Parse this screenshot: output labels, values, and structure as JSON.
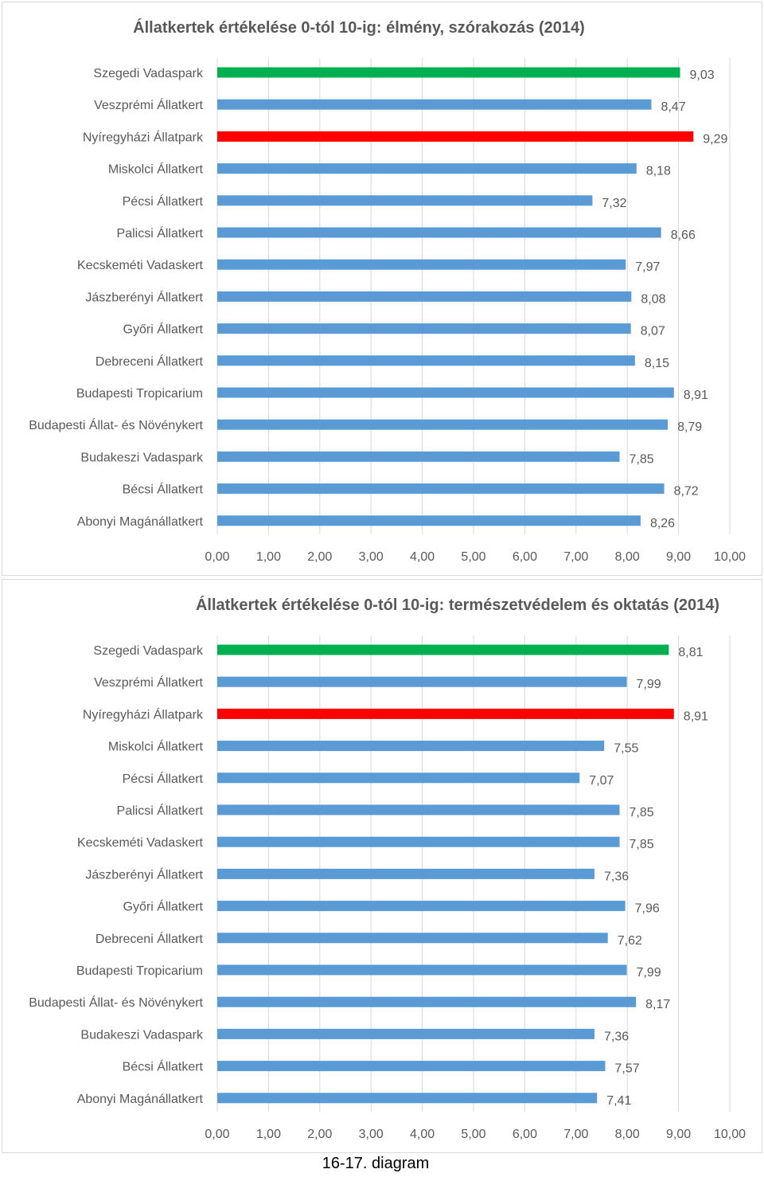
{
  "caption": "16-17. diagram",
  "chart_data": [
    {
      "type": "bar",
      "orientation": "horizontal",
      "title": "Állatkertek értékelése 0-tól 10-ig: élmény, szórakozás (2014)",
      "categories": [
        "Szegedi Vadaspark",
        "Veszprémi Állatkert",
        "Nyíregyházi Állatpark",
        "Miskolci Állatkert",
        "Pécsi Állatkert",
        "Palicsi Állatkert",
        "Kecskeméti Vadaskert",
        "Jászberényi Állatkert",
        "Győri Állatkert",
        "Debreceni Állatkert",
        "Budapesti Tropicarium",
        "Budapesti Állat- és Növénykert",
        "Budakeszi Vadaspark",
        "Bécsi Állatkert",
        "Abonyi Magánállatkert"
      ],
      "values": [
        9.03,
        8.47,
        9.29,
        8.18,
        7.32,
        8.66,
        7.97,
        8.08,
        8.07,
        8.15,
        8.91,
        8.79,
        7.85,
        8.72,
        8.26
      ],
      "value_labels": [
        "9,03",
        "8,47",
        "9,29",
        "8,18",
        "7,32",
        "8,66",
        "7,97",
        "8,08",
        "8,07",
        "8,15",
        "8,91",
        "8,79",
        "7,85",
        "8,72",
        "8,26"
      ],
      "colors": [
        "#00b050",
        "#5b9bd5",
        "#ff0000",
        "#5b9bd5",
        "#5b9bd5",
        "#5b9bd5",
        "#5b9bd5",
        "#5b9bd5",
        "#5b9bd5",
        "#5b9bd5",
        "#5b9bd5",
        "#5b9bd5",
        "#5b9bd5",
        "#5b9bd5",
        "#5b9bd5"
      ],
      "xlim": [
        0,
        10
      ],
      "xticks": [
        0,
        1,
        2,
        3,
        4,
        5,
        6,
        7,
        8,
        9,
        10
      ],
      "xtick_labels": [
        "0,00",
        "1,00",
        "2,00",
        "3,00",
        "4,00",
        "5,00",
        "6,00",
        "7,00",
        "8,00",
        "9,00",
        "10,00"
      ],
      "grid": true,
      "legend": "none"
    },
    {
      "type": "bar",
      "orientation": "horizontal",
      "title": "Állatkertek értékelése 0-tól 10-ig: természetvédelem és oktatás (2014)",
      "categories": [
        "Szegedi Vadaspark",
        "Veszprémi Állatkert",
        "Nyíregyházi Állatpark",
        "Miskolci Állatkert",
        "Pécsi Állatkert",
        "Palicsi Állatkert",
        "Kecskeméti Vadaskert",
        "Jászberényi Állatkert",
        "Győri Állatkert",
        "Debreceni Állatkert",
        "Budapesti Tropicarium",
        "Budapesti Állat- és Növénykert",
        "Budakeszi Vadaspark",
        "Bécsi Állatkert",
        "Abonyi Magánállatkert"
      ],
      "values": [
        8.81,
        7.99,
        8.91,
        7.55,
        7.07,
        7.85,
        7.85,
        7.36,
        7.96,
        7.62,
        7.99,
        8.17,
        7.36,
        7.57,
        7.41
      ],
      "value_labels": [
        "8,81",
        "7,99",
        "8,91",
        "7,55",
        "7,07",
        "7,85",
        "7,85",
        "7,36",
        "7,96",
        "7,62",
        "7,99",
        "8,17",
        "7,36",
        "7,57",
        "7,41"
      ],
      "colors": [
        "#00b050",
        "#5b9bd5",
        "#ff0000",
        "#5b9bd5",
        "#5b9bd5",
        "#5b9bd5",
        "#5b9bd5",
        "#5b9bd5",
        "#5b9bd5",
        "#5b9bd5",
        "#5b9bd5",
        "#5b9bd5",
        "#5b9bd5",
        "#5b9bd5",
        "#5b9bd5"
      ],
      "xlim": [
        0,
        10
      ],
      "xticks": [
        0,
        1,
        2,
        3,
        4,
        5,
        6,
        7,
        8,
        9,
        10
      ],
      "xtick_labels": [
        "0,00",
        "1,00",
        "2,00",
        "3,00",
        "4,00",
        "5,00",
        "6,00",
        "7,00",
        "8,00",
        "9,00",
        "10,00"
      ],
      "grid": true,
      "legend": "none"
    }
  ]
}
